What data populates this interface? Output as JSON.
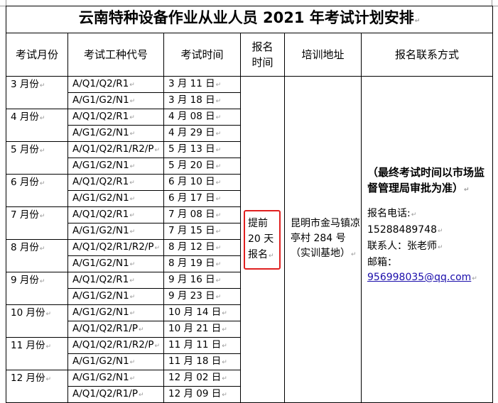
{
  "title": "云南特种设备作业从业人员 2021 年考试计划安排",
  "headers": [
    "考试月份",
    "考试工种代号",
    "考试时间",
    "报名时间",
    "培训地址",
    "报名联系方式"
  ],
  "rows": [
    {
      "month": "3 月份",
      "exams": [
        {
          "code": "A/Q1/Q2/R1",
          "date": "3 月 11 日"
        },
        {
          "code": "A/G1/G2/N1",
          "date": "3 月 18 日"
        }
      ]
    },
    {
      "month": "4 月份",
      "exams": [
        {
          "code": "A/Q1/Q2/R1",
          "date": "4 月 08 日"
        },
        {
          "code": "A/G1/G2/N1",
          "date": "4 月 29 日"
        }
      ]
    },
    {
      "month": "5 月份",
      "exams": [
        {
          "code": "A/Q1/Q2/R1/R2/P",
          "date": "5 月 13 日"
        },
        {
          "code": "A/G1/G2/N1",
          "date": "5 月 20 日"
        }
      ]
    },
    {
      "month": "6 月份",
      "exams": [
        {
          "code": "A/Q1/Q2/R1",
          "date": "6 月 10 日"
        },
        {
          "code": "A/G1/G2/N1",
          "date": "6 月 17 日"
        }
      ]
    },
    {
      "month": "7 月份",
      "exams": [
        {
          "code": "A/Q1/Q2/R1",
          "date": "7 月 08 日"
        },
        {
          "code": "A/G1/G2/N1",
          "date": "7 月 15 日"
        }
      ]
    },
    {
      "month": "8 月份",
      "exams": [
        {
          "code": "A/Q1/Q2/R1/R2/P",
          "date": "8 月 12 日"
        },
        {
          "code": "A/G1/G2/N1",
          "date": "8 月 19 日"
        }
      ]
    },
    {
      "month": "9 月份",
      "exams": [
        {
          "code": "A/Q1/Q2/R1",
          "date": "9 月 16 日"
        },
        {
          "code": "A/G1/G2/N1",
          "date": "9 月 23 日"
        }
      ]
    },
    {
      "month": "10 月份",
      "exams": [
        {
          "code": "A/G1/G2/N1",
          "date": "10 月 14 日"
        },
        {
          "code": "A/Q1/Q2/R1/P",
          "date": "10 月 21 日"
        }
      ]
    },
    {
      "month": "11 月份",
      "exams": [
        {
          "code": "A/Q1/Q2/R1/R2/P",
          "date": "11 月 11 日"
        },
        {
          "code": "A/G1/G2/N1",
          "date": "11 月 18 日"
        }
      ]
    },
    {
      "month": "12 月份",
      "exams": [
        {
          "code": "A/G1/G2/N1",
          "date": "12 月 02 日"
        },
        {
          "code": "A/Q1/Q2/R1/P",
          "date": "12 月 09 日"
        }
      ]
    }
  ],
  "registration": "提前 20 天报名",
  "address": "昆明市金马镇凉亭村 284 号（实训基地）",
  "contact": {
    "note": "（最终考试时间以市场监督管理局审批为准）",
    "phone_label": "报名电话:",
    "phone": "15288489748",
    "person": "联系人：张老师",
    "email_label": "邮箱：",
    "email": "956998035@qq.com"
  },
  "colors": {
    "highlight_box": "#e02020",
    "link": "#1a0dab"
  }
}
